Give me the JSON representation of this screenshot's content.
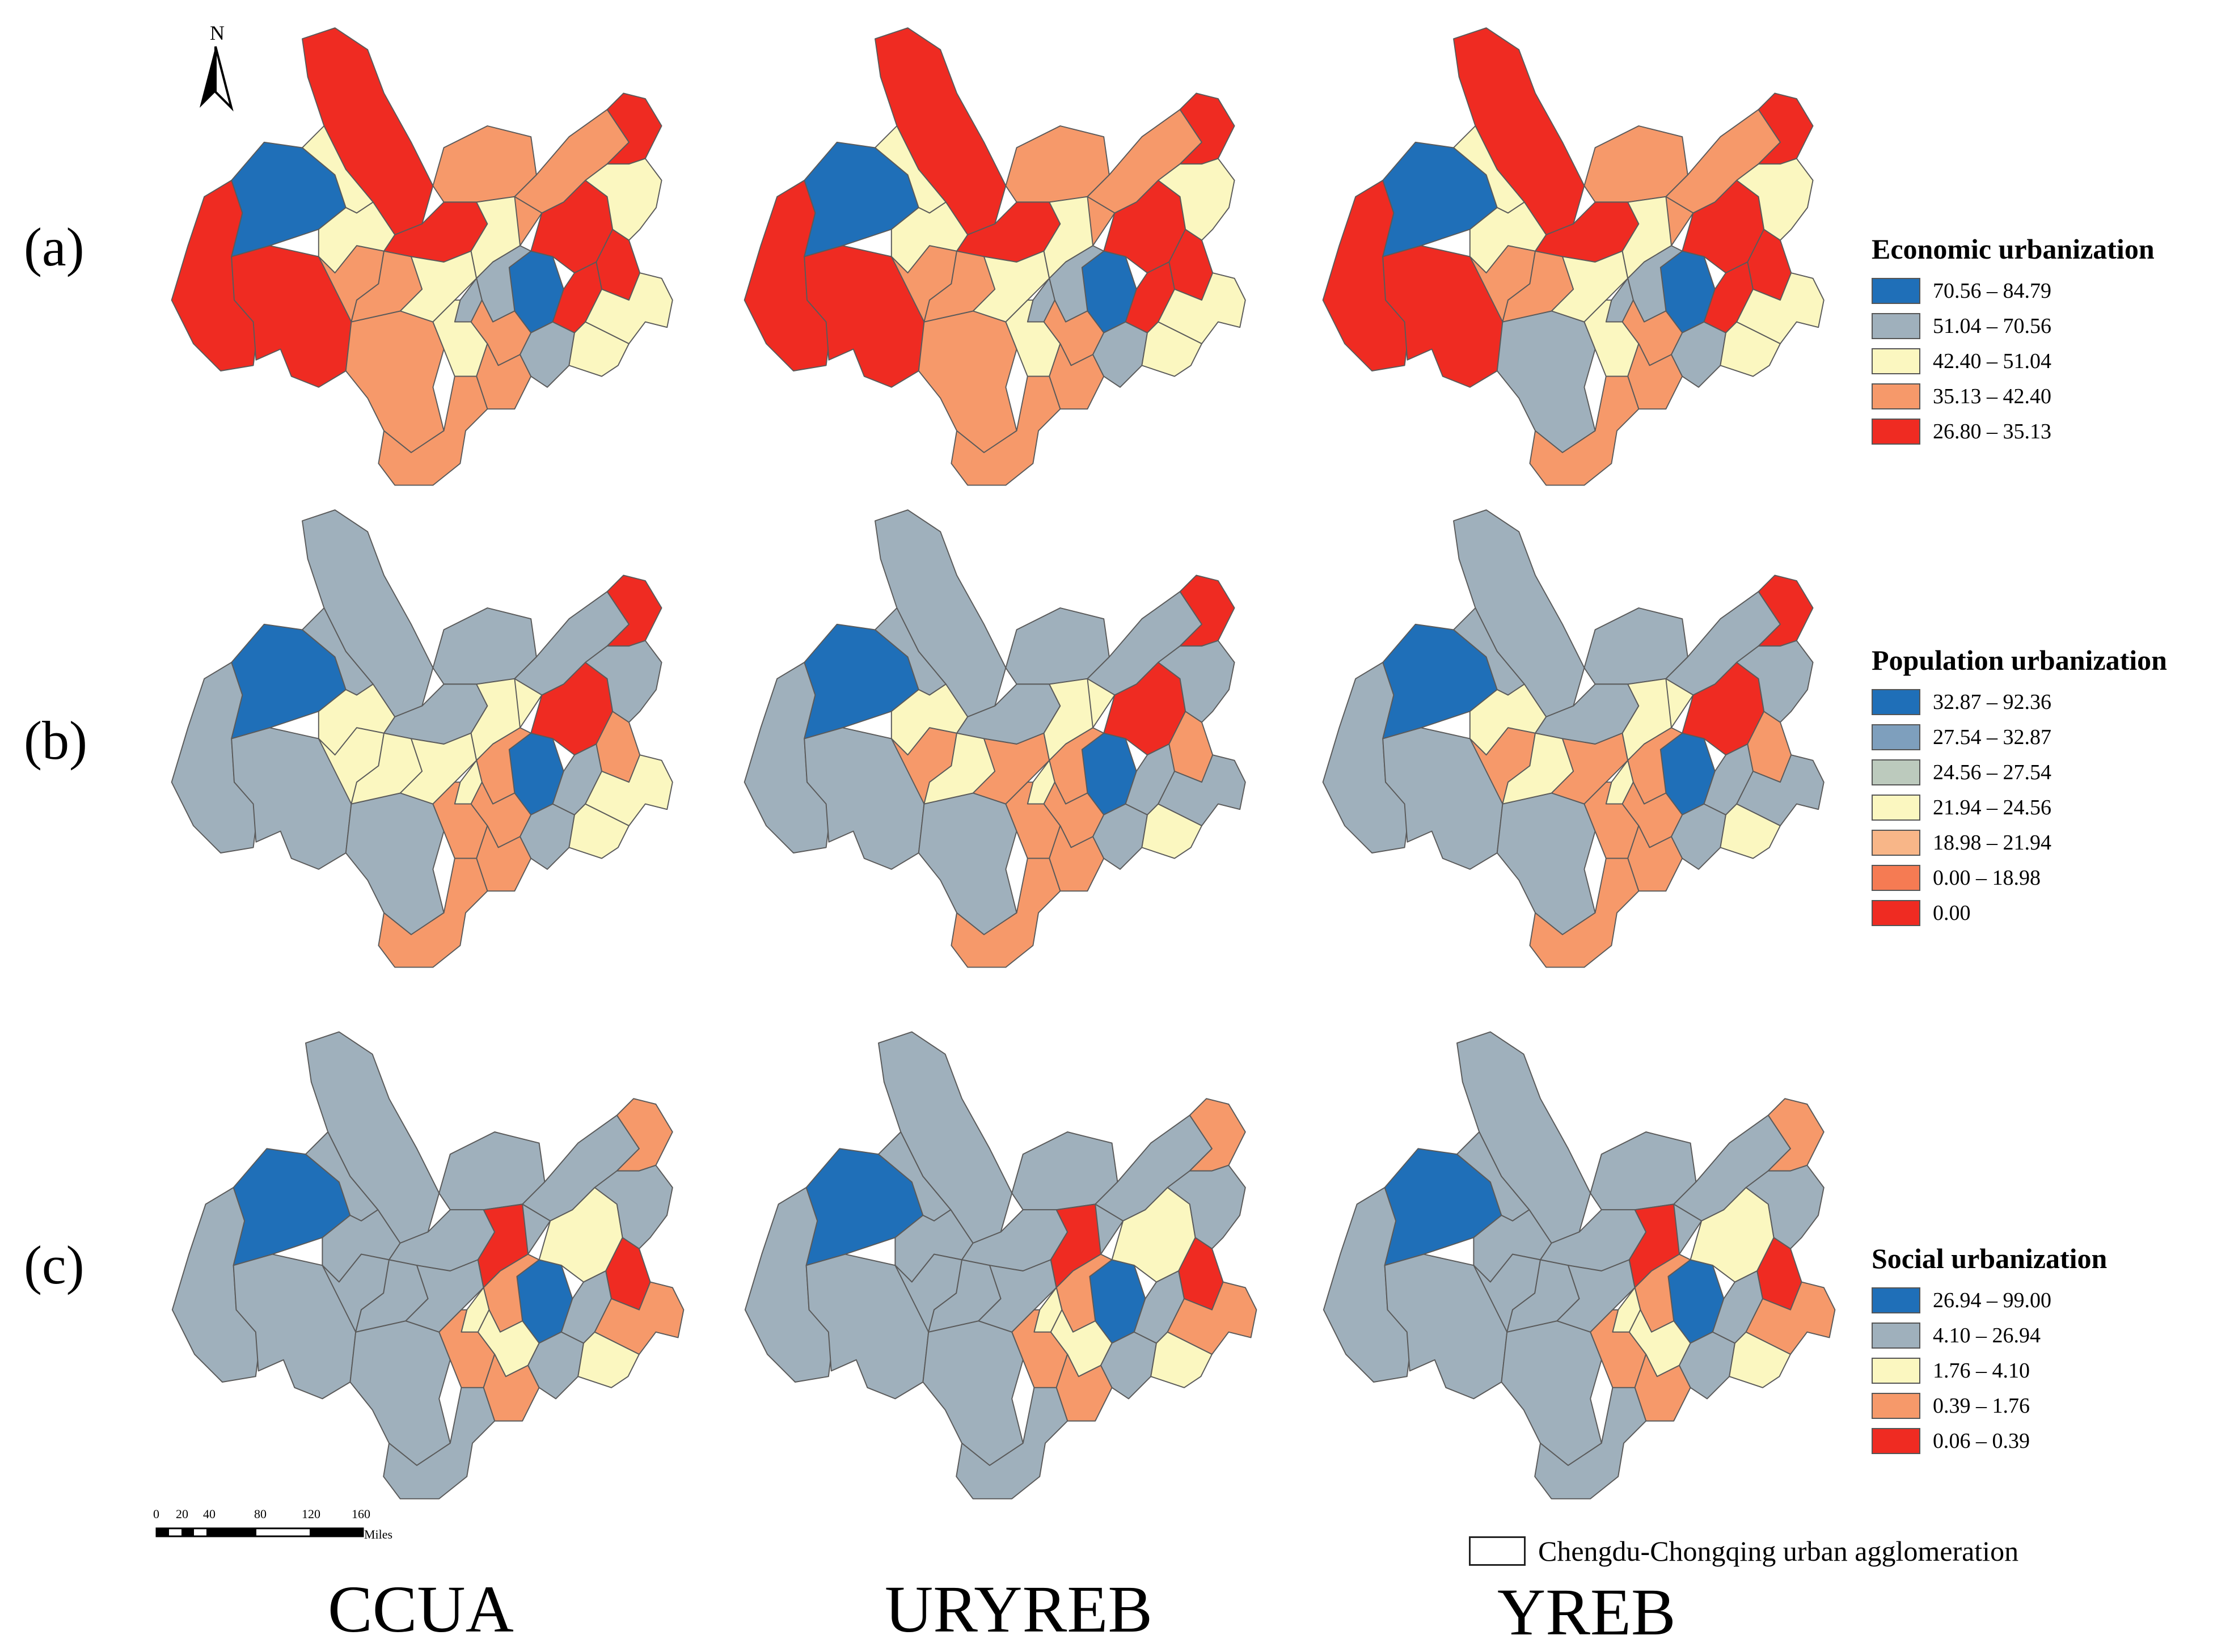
{
  "north_label": "N",
  "row_labels": [
    "(a)",
    "(b)",
    "(c)"
  ],
  "column_labels": [
    "CCUA",
    "URYREB",
    "YREB"
  ],
  "scale_bar": {
    "ticks": [
      "0",
      "20",
      "40",
      "80",
      "120",
      "160"
    ],
    "unit": "Miles"
  },
  "boundary_legend": "Chengdu-Chongqing urban agglomeration",
  "legends": [
    {
      "title": "Economic urbanization",
      "classes": [
        {
          "label": "70.56 – 84.79",
          "color": "#1f6fb8"
        },
        {
          "label": "51.04 – 70.56",
          "color": "#9fb0bc"
        },
        {
          "label": "42.40 – 51.04",
          "color": "#fbf7c0"
        },
        {
          "label": "35.13 – 42.40",
          "color": "#f6996a"
        },
        {
          "label": "26.80 – 35.13",
          "color": "#ef2b22"
        }
      ]
    },
    {
      "title": "Population urbanization",
      "classes": [
        {
          "label": "32.87 – 92.36",
          "color": "#1f6fb8"
        },
        {
          "label": "27.54 – 32.87",
          "color": "#7e9fbd"
        },
        {
          "label": "24.56 – 27.54",
          "color": "#bccabd"
        },
        {
          "label": "21.94 – 24.56",
          "color": "#fbf7c0"
        },
        {
          "label": "18.98 – 21.94",
          "color": "#f8b688"
        },
        {
          "label": "0.00 – 18.98",
          "color": "#f57b53"
        },
        {
          "label": "0.00",
          "color": "#ef2b22"
        }
      ]
    },
    {
      "title": "Social urbanization",
      "classes": [
        {
          "label": "26.94 – 99.00",
          "color": "#1f6fb8"
        },
        {
          "label": "4.10 – 26.94",
          "color": "#9fb0bc"
        },
        {
          "label": "1.76 – 4.10",
          "color": "#fbf7c0"
        },
        {
          "label": "0.39 – 1.76",
          "color": "#f6996a"
        },
        {
          "label": "0.06 – 0.39",
          "color": "#ef2b22"
        }
      ]
    }
  ],
  "maps": [
    [
      "red",
      "red",
      "orange",
      "red",
      "blue",
      "yellow",
      "orange",
      "yellow",
      "red",
      "orange",
      "orange",
      "orange",
      "yellow",
      "orange",
      "red",
      "red",
      "yellow",
      "blue",
      "gray",
      "gray",
      "yellow",
      "orange",
      "orange",
      "gray",
      "red",
      "orange",
      "yellow",
      "red",
      "yellow",
      "yellow"
    ],
    [
      "red",
      "red",
      "orange",
      "red",
      "blue",
      "yellow",
      "orange",
      "yellow",
      "red",
      "orange",
      "orange",
      "orange",
      "yellow",
      "orange",
      "red",
      "red",
      "yellow",
      "blue",
      "gray",
      "gray",
      "yellow",
      "orange",
      "orange",
      "gray",
      "red",
      "orange",
      "yellow",
      "red",
      "yellow",
      "yellow"
    ],
    [
      "red",
      "red",
      "gray",
      "red",
      "blue",
      "yellow",
      "orange",
      "yellow",
      "red",
      "orange",
      "orange",
      "orange",
      "yellow",
      "orange",
      "red",
      "red",
      "yellow",
      "blue",
      "gray",
      "gray",
      "yellow",
      "orange",
      "orange",
      "gray",
      "red",
      "orange",
      "yellow",
      "red",
      "yellow",
      "yellow"
    ],
    [
      "gray",
      "gray",
      "gray",
      "gray",
      "blue",
      "gray",
      "gray",
      "yellow",
      "gray",
      "yellow",
      "yellow",
      "gray",
      "yellow",
      "yellow",
      "red",
      "red",
      "yellow",
      "blue",
      "orange",
      "yellow",
      "orange",
      "orange",
      "orange",
      "gray",
      "gray",
      "orange",
      "yellow",
      "orange",
      "yellow",
      "gray"
    ],
    [
      "gray",
      "gray",
      "gray",
      "gray",
      "blue",
      "gray",
      "gray",
      "yellow",
      "gray",
      "orange",
      "yellow",
      "gray",
      "orange",
      "yellow",
      "red",
      "red",
      "yellow",
      "blue",
      "orange",
      "yellow",
      "orange",
      "orange",
      "orange",
      "gray",
      "gray",
      "orange",
      "yellow",
      "orange",
      "gray",
      "gray"
    ],
    [
      "gray",
      "gray",
      "gray",
      "gray",
      "blue",
      "gray",
      "gray",
      "yellow",
      "gray",
      "orange",
      "yellow",
      "gray",
      "orange",
      "yellow",
      "red",
      "red",
      "yellow",
      "blue",
      "orange",
      "yellow",
      "orange",
      "orange",
      "orange",
      "gray",
      "gray",
      "orange",
      "yellow",
      "orange",
      "gray",
      "gray"
    ],
    [
      "gray",
      "gray",
      "gray",
      "gray",
      "blue",
      "gray",
      "gray",
      "gray",
      "gray",
      "gray",
      "gray",
      "gray",
      "gray",
      "gray",
      "orange",
      "yellow",
      "red",
      "blue",
      "orange",
      "yellow",
      "orange",
      "yellow",
      "orange",
      "gray",
      "gray",
      "gray",
      "yellow",
      "red",
      "orange",
      "gray"
    ],
    [
      "gray",
      "gray",
      "gray",
      "gray",
      "blue",
      "gray",
      "gray",
      "gray",
      "gray",
      "gray",
      "gray",
      "gray",
      "gray",
      "gray",
      "orange",
      "yellow",
      "red",
      "blue",
      "orange",
      "yellow",
      "orange",
      "yellow",
      "orange",
      "gray",
      "gray",
      "gray",
      "yellow",
      "red",
      "orange",
      "gray"
    ],
    [
      "gray",
      "gray",
      "gray",
      "gray",
      "blue",
      "gray",
      "gray",
      "gray",
      "gray",
      "gray",
      "gray",
      "gray",
      "gray",
      "gray",
      "orange",
      "yellow",
      "red",
      "blue",
      "orange",
      "yellow",
      "orange",
      "yellow",
      "orange",
      "gray",
      "gray",
      "gray",
      "yellow",
      "red",
      "orange",
      "gray"
    ]
  ],
  "palette": {
    "blue": "#1f6fb8",
    "gray": "#9fb0bc",
    "yellow": "#fbf7c0",
    "orange": "#f6996a",
    "red": "#ef2b22"
  }
}
